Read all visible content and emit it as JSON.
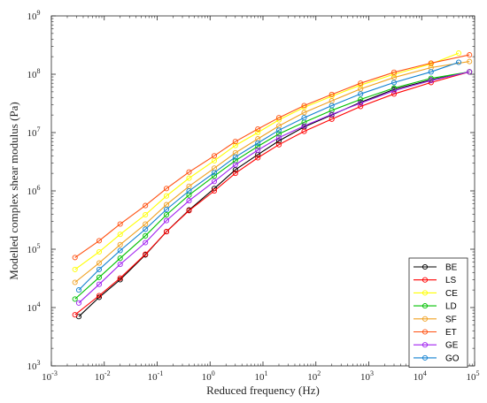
{
  "chart_data": {
    "type": "line",
    "title": "",
    "xlabel": "Reduced frequency (Hz)",
    "ylabel": "Modelled complex shear modulus (Pa)",
    "xscale": "log",
    "yscale": "log",
    "xlim": [
      0.001,
      100000
    ],
    "ylim": [
      1000,
      1000000000
    ],
    "x_ticks": [
      0.001,
      0.01,
      0.1,
      1,
      10,
      100,
      1000,
      10000,
      100000
    ],
    "y_ticks": [
      1000,
      10000,
      100000,
      1000000,
      10000000,
      100000000,
      1000000000
    ],
    "x_tick_labels": [
      [
        "10",
        "-3"
      ],
      [
        "10",
        "-2"
      ],
      [
        "10",
        "-1"
      ],
      [
        "10",
        "0"
      ],
      [
        "10",
        "1"
      ],
      [
        "10",
        "2"
      ],
      [
        "10",
        "3"
      ],
      [
        "10",
        "4"
      ],
      [
        "10",
        "5"
      ]
    ],
    "y_tick_labels": [
      [
        "10",
        "3"
      ],
      [
        "10",
        "4"
      ],
      [
        "10",
        "5"
      ],
      [
        "10",
        "6"
      ],
      [
        "10",
        "7"
      ],
      [
        "10",
        "8"
      ],
      [
        "10",
        "9"
      ]
    ],
    "grid": false,
    "legend_position": "bottom-right",
    "markers": "open-circle",
    "series": [
      {
        "name": "BE",
        "color": "#000000",
        "points": [
          [
            0.0033,
            7000
          ],
          [
            0.008,
            15000
          ],
          [
            0.02,
            30000
          ],
          [
            0.06,
            80000
          ],
          [
            0.15,
            200000
          ],
          [
            0.4,
            470000
          ],
          [
            1.2,
            1100000
          ],
          [
            3,
            2300000
          ],
          [
            8,
            4200000
          ],
          [
            20,
            7200000
          ],
          [
            60,
            12500000
          ],
          [
            200,
            20000000
          ],
          [
            700,
            33000000
          ],
          [
            3000,
            55000000
          ],
          [
            15000,
            80000000
          ],
          [
            80000,
            110000000
          ]
        ]
      },
      {
        "name": "LS",
        "color": "#ff0000",
        "points": [
          [
            0.0028,
            7500
          ],
          [
            0.008,
            16000
          ],
          [
            0.02,
            32000
          ],
          [
            0.06,
            82000
          ],
          [
            0.15,
            200000
          ],
          [
            0.4,
            460000
          ],
          [
            1.2,
            1000000
          ],
          [
            3,
            2000000
          ],
          [
            8,
            3700000
          ],
          [
            20,
            6200000
          ],
          [
            60,
            10500000
          ],
          [
            200,
            17000000
          ],
          [
            700,
            28000000
          ],
          [
            3000,
            46000000
          ],
          [
            15000,
            72000000
          ],
          [
            80000,
            110000000
          ]
        ]
      },
      {
        "name": "CE",
        "color": "#ffff00",
        "points": [
          [
            0.0028,
            45000
          ],
          [
            0.008,
            90000
          ],
          [
            0.02,
            180000
          ],
          [
            0.06,
            390000
          ],
          [
            0.15,
            820000
          ],
          [
            0.4,
            1650000
          ],
          [
            1.2,
            3300000
          ],
          [
            3,
            6000000
          ],
          [
            8,
            10000000
          ],
          [
            20,
            16500000
          ],
          [
            60,
            27000000
          ],
          [
            200,
            42000000
          ],
          [
            700,
            65000000
          ],
          [
            3000,
            100000000
          ],
          [
            15000,
            150000000
          ],
          [
            50000,
            230000000
          ]
        ]
      },
      {
        "name": "LD",
        "color": "#00c000",
        "points": [
          [
            0.0028,
            14000
          ],
          [
            0.008,
            33000
          ],
          [
            0.02,
            70000
          ],
          [
            0.06,
            170000
          ],
          [
            0.15,
            390000
          ],
          [
            0.4,
            850000
          ],
          [
            1.2,
            1800000
          ],
          [
            3,
            3300000
          ],
          [
            8,
            5800000
          ],
          [
            20,
            9500000
          ],
          [
            60,
            15000000
          ],
          [
            200,
            24000000
          ],
          [
            700,
            37000000
          ],
          [
            3000,
            58000000
          ],
          [
            15000,
            85000000
          ],
          [
            80000,
            110000000
          ]
        ]
      },
      {
        "name": "SF",
        "color": "#f0a020",
        "points": [
          [
            0.0028,
            27000
          ],
          [
            0.008,
            58000
          ],
          [
            0.02,
            120000
          ],
          [
            0.06,
            270000
          ],
          [
            0.15,
            580000
          ],
          [
            0.4,
            1200000
          ],
          [
            1.2,
            2450000
          ],
          [
            3,
            4500000
          ],
          [
            8,
            7800000
          ],
          [
            20,
            13000000
          ],
          [
            60,
            22000000
          ],
          [
            200,
            35000000
          ],
          [
            700,
            56000000
          ],
          [
            3000,
            88000000
          ],
          [
            15000,
            130000000
          ],
          [
            80000,
            165000000
          ]
        ]
      },
      {
        "name": "ET",
        "color": "#ff5010",
        "points": [
          [
            0.0028,
            72000
          ],
          [
            0.008,
            140000
          ],
          [
            0.02,
            270000
          ],
          [
            0.06,
            560000
          ],
          [
            0.15,
            1100000
          ],
          [
            0.4,
            2100000
          ],
          [
            1.2,
            4000000
          ],
          [
            3,
            7000000
          ],
          [
            8,
            11500000
          ],
          [
            20,
            18000000
          ],
          [
            60,
            29000000
          ],
          [
            200,
            45000000
          ],
          [
            700,
            70000000
          ],
          [
            3000,
            108000000
          ],
          [
            15000,
            155000000
          ],
          [
            80000,
            215000000
          ]
        ]
      },
      {
        "name": "GE",
        "color": "#a020f0",
        "points": [
          [
            0.0033,
            12000
          ],
          [
            0.008,
            25000
          ],
          [
            0.02,
            55000
          ],
          [
            0.06,
            130000
          ],
          [
            0.15,
            310000
          ],
          [
            0.4,
            680000
          ],
          [
            1.2,
            1450000
          ],
          [
            3,
            2800000
          ],
          [
            8,
            5000000
          ],
          [
            20,
            8200000
          ],
          [
            60,
            13000000
          ],
          [
            200,
            20500000
          ],
          [
            700,
            32000000
          ],
          [
            3000,
            52000000
          ],
          [
            15000,
            78000000
          ],
          [
            80000,
            110000000
          ]
        ]
      },
      {
        "name": "GO",
        "color": "#1080d0",
        "points": [
          [
            0.0033,
            20000
          ],
          [
            0.008,
            45000
          ],
          [
            0.02,
            95000
          ],
          [
            0.06,
            220000
          ],
          [
            0.15,
            480000
          ],
          [
            0.4,
            1000000
          ],
          [
            1.2,
            2050000
          ],
          [
            3,
            3800000
          ],
          [
            8,
            6600000
          ],
          [
            20,
            11000000
          ],
          [
            60,
            18000000
          ],
          [
            200,
            29000000
          ],
          [
            700,
            46000000
          ],
          [
            3000,
            72000000
          ],
          [
            15000,
            110000000
          ],
          [
            50000,
            160000000
          ]
        ]
      }
    ]
  }
}
